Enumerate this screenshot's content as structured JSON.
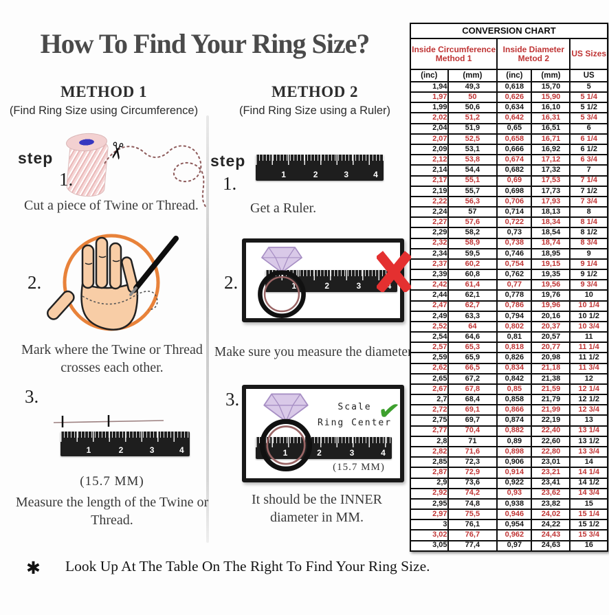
{
  "title": "How To Find Your Ring Size?",
  "methods": [
    {
      "heading": "METHOD 1",
      "subheading": "(Find Ring Size using Circumference)",
      "step_label": "step",
      "steps": [
        {
          "num": "1.",
          "text": "Cut a piece of Twine or Thread."
        },
        {
          "num": "2.",
          "text": "Mark where the Twine or Thread crosses each other."
        },
        {
          "num": "3.",
          "text": "Measure the length of the Twine or Thread.",
          "measurement": "(15.7 MM)"
        }
      ]
    },
    {
      "heading": "METHOD 2",
      "subheading": "(Find Ring Size using a Ruler)",
      "step_label": "step",
      "steps": [
        {
          "num": "1.",
          "text": "Get a Ruler."
        },
        {
          "num": "2.",
          "text": "Make sure you measure the diameter."
        },
        {
          "num": "3.",
          "text": "It should be the INNER diameter in MM.",
          "measurement": "(15.7 MM)",
          "annotation_line1": "Scale",
          "annotation_line2": "Ring Center"
        }
      ]
    }
  ],
  "footnote": {
    "marker": "✱",
    "text": "Look Up At The Table On The Right To Find Your Ring Size."
  },
  "ruler_numbers": [
    "1",
    "2",
    "3",
    "4"
  ],
  "icons": {
    "scissors": "✂",
    "check": "✔"
  },
  "colors": {
    "accent_red": "#bf3434",
    "circle_orange": "#e8823a",
    "check_green": "#3ea02e",
    "x_red": "#e43030",
    "hand_skin": "#f8cda6",
    "ring_band": "#9a6565",
    "diamond_purple": "#d9c9e8"
  },
  "chart_data": {
    "type": "table",
    "title": "CONVERSION CHART",
    "column_groups": [
      {
        "line1": "Inside Circumference",
        "line2": "Method 1",
        "span": 2
      },
      {
        "line1": "Inside Diameter",
        "line2": "Metod 2",
        "span": 2
      },
      {
        "line1": "US Sizes",
        "line2": "",
        "span": 1
      }
    ],
    "columns": [
      "(inc)",
      "(mm)",
      "(inc)",
      "(mm)",
      "US"
    ],
    "rows": [
      [
        "1,94",
        "49,3",
        "0,618",
        "15,70",
        "5"
      ],
      [
        "1,97",
        "50",
        "0,626",
        "15,90",
        "5 1/4"
      ],
      [
        "1,99",
        "50,6",
        "0,634",
        "16,10",
        "5 1/2"
      ],
      [
        "2,02",
        "51,2",
        "0,642",
        "16,31",
        "5 3/4"
      ],
      [
        "2,04",
        "51,9",
        "0,65",
        "16,51",
        "6"
      ],
      [
        "2,07",
        "52,5",
        "0,658",
        "16,71",
        "6 1/4"
      ],
      [
        "2,09",
        "53,1",
        "0,666",
        "16,92",
        "6 1/2"
      ],
      [
        "2,12",
        "53,8",
        "0,674",
        "17,12",
        "6 3/4"
      ],
      [
        "2,14",
        "54,4",
        "0,682",
        "17,32",
        "7"
      ],
      [
        "2,17",
        "55,1",
        "0,69",
        "17,53",
        "7 1/4"
      ],
      [
        "2,19",
        "55,7",
        "0,698",
        "17,73",
        "7 1/2"
      ],
      [
        "2,22",
        "56,3",
        "0,706",
        "17,93",
        "7 3/4"
      ],
      [
        "2,24",
        "57",
        "0,714",
        "18,13",
        "8"
      ],
      [
        "2,27",
        "57,6",
        "0,722",
        "18,34",
        "8 1/4"
      ],
      [
        "2,29",
        "58,2",
        "0,73",
        "18,54",
        "8 1/2"
      ],
      [
        "2,32",
        "58,9",
        "0,738",
        "18,74",
        "8 3/4"
      ],
      [
        "2,34",
        "59,5",
        "0,746",
        "18,95",
        "9"
      ],
      [
        "2,37",
        "60,2",
        "0,754",
        "19,15",
        "9 1/4"
      ],
      [
        "2,39",
        "60,8",
        "0,762",
        "19,35",
        "9 1/2"
      ],
      [
        "2,42",
        "61,4",
        "0,77",
        "19,56",
        "9 3/4"
      ],
      [
        "2,44",
        "62,1",
        "0,778",
        "19,76",
        "10"
      ],
      [
        "2,47",
        "62,7",
        "0,786",
        "19,96",
        "10 1/4"
      ],
      [
        "2,49",
        "63,3",
        "0,794",
        "20,16",
        "10 1/2"
      ],
      [
        "2,52",
        "64",
        "0,802",
        "20,37",
        "10 3/4"
      ],
      [
        "2,54",
        "64,6",
        "0,81",
        "20,57",
        "11"
      ],
      [
        "2,57",
        "65,3",
        "0,818",
        "20,77",
        "11 1/4"
      ],
      [
        "2,59",
        "65,9",
        "0,826",
        "20,98",
        "11 1/2"
      ],
      [
        "2,62",
        "66,5",
        "0,834",
        "21,18",
        "11 3/4"
      ],
      [
        "2,65",
        "67,2",
        "0,842",
        "21,38",
        "12"
      ],
      [
        "2,67",
        "67,8",
        "0,85",
        "21,59",
        "12 1/4"
      ],
      [
        "2,7",
        "68,4",
        "0,858",
        "21,79",
        "12 1/2"
      ],
      [
        "2,72",
        "69,1",
        "0,866",
        "21,99",
        "12 3/4"
      ],
      [
        "2,75",
        "69,7",
        "0,874",
        "22,19",
        "13"
      ],
      [
        "2,77",
        "70,4",
        "0,882",
        "22,40",
        "13 1/4"
      ],
      [
        "2,8",
        "71",
        "0,89",
        "22,60",
        "13 1/2"
      ],
      [
        "2,82",
        "71,6",
        "0,898",
        "22,80",
        "13 3/4"
      ],
      [
        "2,85",
        "72,3",
        "0,906",
        "23,01",
        "14"
      ],
      [
        "2,87",
        "72,9",
        "0,914",
        "23,21",
        "14 1/4"
      ],
      [
        "2,9",
        "73,6",
        "0,922",
        "23,41",
        "14 1/2"
      ],
      [
        "2,92",
        "74,2",
        "0,93",
        "23,62",
        "14 3/4"
      ],
      [
        "2,95",
        "74,8",
        "0,938",
        "23,82",
        "15"
      ],
      [
        "2,97",
        "75,5",
        "0,946",
        "24,02",
        "15 1/4"
      ],
      [
        "3",
        "76,1",
        "0,954",
        "24,22",
        "15 1/2"
      ],
      [
        "3,02",
        "76,7",
        "0,962",
        "24,43",
        "15 3/4"
      ],
      [
        "3,05",
        "77,4",
        "0,97",
        "24,63",
        "16"
      ]
    ]
  }
}
